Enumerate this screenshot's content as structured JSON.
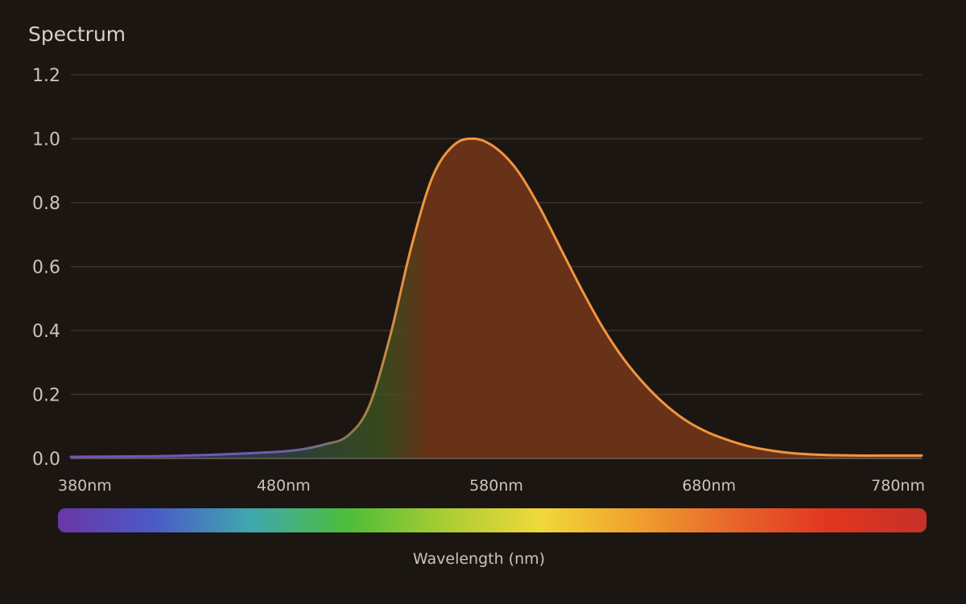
{
  "chart_data": {
    "type": "area",
    "title": "Spectrum",
    "xlabel": "Wavelength (nm)",
    "ylabel": "",
    "xlim": [
      380,
      780
    ],
    "ylim": [
      0,
      1.2
    ],
    "grid": true,
    "x_ticks": [
      {
        "value": 380,
        "label": "380nm"
      },
      {
        "value": 480,
        "label": "480nm"
      },
      {
        "value": 580,
        "label": "580nm"
      },
      {
        "value": 680,
        "label": "680nm"
      },
      {
        "value": 780,
        "label": "780nm"
      }
    ],
    "y_ticks": [
      {
        "value": 0.0,
        "label": "0.0"
      },
      {
        "value": 0.2,
        "label": "0.2"
      },
      {
        "value": 0.4,
        "label": "0.4"
      },
      {
        "value": 0.6,
        "label": "0.6"
      },
      {
        "value": 0.8,
        "label": "0.8"
      },
      {
        "value": 1.0,
        "label": "1.0"
      },
      {
        "value": 1.2,
        "label": "1.2"
      }
    ],
    "series": [
      {
        "x": [
          380,
          400,
          420,
          440,
          460,
          480,
          490,
          500,
          510,
          520,
          530,
          540,
          550,
          560,
          570,
          580,
          590,
          600,
          610,
          620,
          630,
          640,
          650,
          660,
          670,
          680,
          690,
          700,
          710,
          720,
          730,
          740,
          750,
          760,
          770,
          780
        ],
        "y": [
          0.005,
          0.006,
          0.007,
          0.01,
          0.015,
          0.022,
          0.03,
          0.045,
          0.07,
          0.16,
          0.38,
          0.66,
          0.88,
          0.98,
          1.0,
          0.97,
          0.9,
          0.79,
          0.66,
          0.53,
          0.41,
          0.31,
          0.23,
          0.165,
          0.115,
          0.08,
          0.055,
          0.036,
          0.024,
          0.016,
          0.012,
          0.01,
          0.009,
          0.009,
          0.009,
          0.009
        ],
        "line_color": "#f2953f",
        "fill_color": "#6b3318"
      }
    ],
    "color_bar": {
      "stops": [
        "#6a36a6",
        "#4a5bc7",
        "#3fa8b0",
        "#4dbd3a",
        "#a9cc34",
        "#f0d93a",
        "#f0a02e",
        "#e8652a",
        "#e0361f",
        "#c7302a"
      ]
    }
  }
}
